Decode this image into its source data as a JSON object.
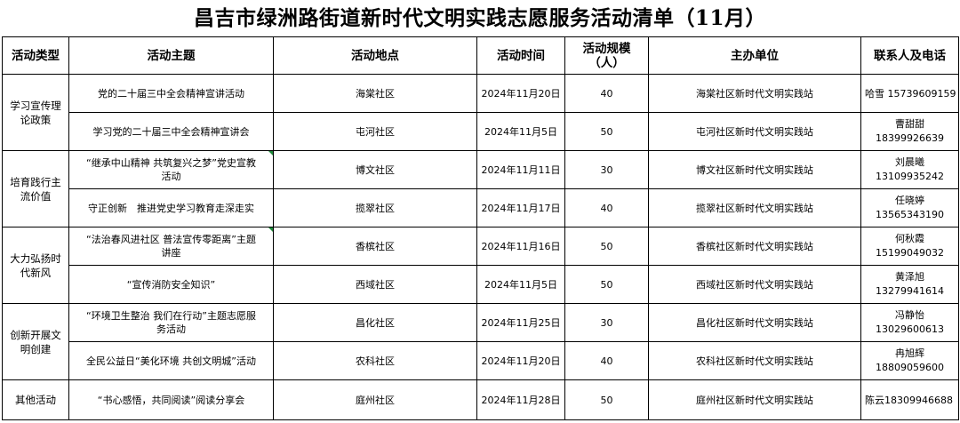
{
  "title": "昌吉市绿洲路街道新时代文明实践志愿服务活动清单（11月）",
  "headers": {
    "type": "活动类型",
    "theme": "活动主题",
    "place": "活动地点",
    "time": "活动时间",
    "scale_line1": "活动规模",
    "scale_line2": "（人）",
    "organizer": "主办单位",
    "contact": "联系人及电话"
  },
  "categories": [
    {
      "label_line1": "学习宣传理",
      "label_line2": "论政策"
    },
    {
      "label_line1": "培育践行主",
      "label_line2": "流价值"
    },
    {
      "label_line1": "大力弘扬时",
      "label_line2": "代新风"
    },
    {
      "label_line1": "创新开展文",
      "label_line2": "明创建"
    },
    {
      "label_line1": "其他活动",
      "label_line2": ""
    }
  ],
  "rows": [
    {
      "theme_line1": "党的二十届三中全会精神宣讲活动",
      "theme_line2": "",
      "place": "海棠社区",
      "time": "2024年11月20日",
      "scale": "40",
      "organizer": "海棠社区新时代文明实践站",
      "contact_name": "哈雪",
      "contact_phone": "15739609159"
    },
    {
      "theme_line1": "学习党的二十届三中全会精神宣讲会",
      "theme_line2": "",
      "place": "屯河社区",
      "time": "2024年11月5日",
      "scale": "50",
      "organizer": "屯河社区新时代文明实践站",
      "contact_name": "曹甜甜",
      "contact_phone": "18399926639"
    },
    {
      "theme_line1": "“继承中山精神 共筑复兴之梦”党史宣教",
      "theme_line2": "活动",
      "place": "博文社区",
      "time": "2024年11月11日",
      "scale": "30",
      "organizer": "博文社区新时代文明实践站",
      "contact_name": "刘晨曦",
      "contact_phone": "13109935242"
    },
    {
      "theme_line1": "守正创新　推进党史学习教育走深走实",
      "theme_line2": "",
      "place": "揽翠社区",
      "time": "2024年11月17日",
      "scale": "40",
      "organizer": "揽翠社区新时代文明实践站",
      "contact_name": "任晓婷",
      "contact_phone": "13565343190"
    },
    {
      "theme_line1": "“法治春风进社区 普法宣传零距离”主题",
      "theme_line2": "讲座",
      "place": "香槟社区",
      "time": "2024年11月16日",
      "scale": "50",
      "organizer": "香槟社区新时代文明实践站",
      "contact_name": "何秋霞",
      "contact_phone": "15199049032"
    },
    {
      "theme_line1": "“宣传消防安全知识”",
      "theme_line2": "",
      "place": "西域社区",
      "time": "2024年11月5日",
      "scale": "50",
      "organizer": "西域社区新时代文明实践站",
      "contact_name": "黄泽旭",
      "contact_phone": "13279941614"
    },
    {
      "theme_line1": "“环境卫生整治 我们在行动”主题志愿服",
      "theme_line2": "务活动",
      "place": "昌化社区",
      "time": "2024年11月25日",
      "scale": "30",
      "organizer": "昌化社区新时代文明实践站",
      "contact_name": "冯静怡",
      "contact_phone": "13029600613"
    },
    {
      "theme_line1": "全民公益日“美化环境 共创文明城”活动",
      "theme_line2": "",
      "place": "农科社区",
      "time": "2024年11月20日",
      "scale": "40",
      "organizer": "农科社区新时代文明实践站",
      "contact_name": "冉旭辉",
      "contact_phone": "18809059600"
    },
    {
      "theme_line1": "“书心感悟，共同阅读”阅读分享会",
      "theme_line2": "",
      "place": "庭州社区",
      "time": "2024年11月28日",
      "scale": "50",
      "organizer": "庭州社区新时代文明实践站",
      "contact_name": "陈云",
      "contact_phone": "18309946688"
    }
  ]
}
